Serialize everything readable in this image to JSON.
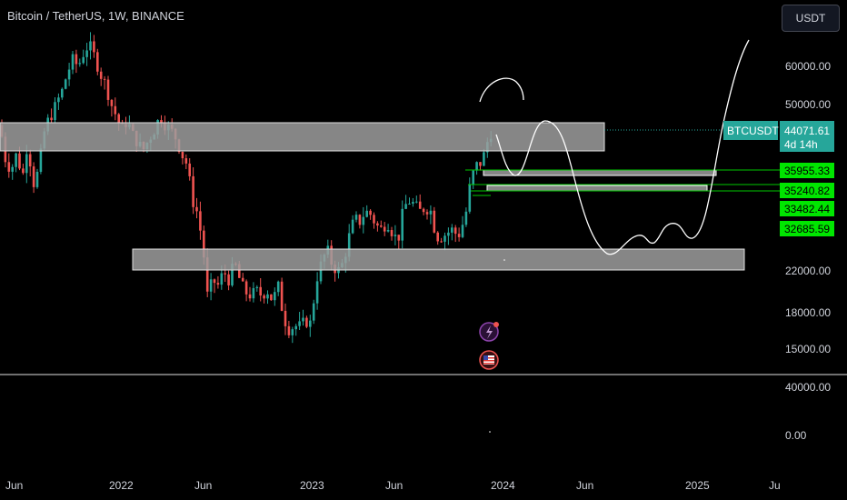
{
  "header": {
    "symbol_title": "Bitcoin / TetherUS, 1W, BINANCE",
    "currency_button": "USDT"
  },
  "colors": {
    "up": "#26a69a",
    "down": "#ef5350",
    "price_tag": "#26a69a",
    "level_tag": "#00e600",
    "zone_fill": "#9e9e9e"
  },
  "chart_data": {
    "type": "candlestick",
    "symbol": "BTCUSDT",
    "interval": "1W",
    "x_labels": [
      "Jun",
      "2022",
      "Jun",
      "2023",
      "Jun",
      "2024",
      "Jun",
      "2025",
      "Ju"
    ],
    "y_ticks_main": [
      "60000.00",
      "50000.00",
      "22000.00",
      "18000.00",
      "15000.00"
    ],
    "y_ticks_indicator": [
      "40000.00",
      "0.00"
    ],
    "last_price": {
      "symbol": "BTCUSDT",
      "price": "44071.61",
      "countdown": "4d 14h"
    },
    "level_labels": [
      "35955.33",
      "35240.82",
      "33482.44",
      "32685.59"
    ],
    "support_resistance_zones": [
      {
        "from": 42000,
        "to": 48000
      },
      {
        "from": 21500,
        "to": 24500
      }
    ],
    "candle_path": [
      [
        0,
        45000
      ],
      [
        6,
        38000
      ],
      [
        12,
        36000
      ],
      [
        18,
        39000
      ],
      [
        25,
        35000
      ],
      [
        30,
        41000
      ],
      [
        38,
        33000
      ],
      [
        44,
        38000
      ],
      [
        50,
        45000
      ],
      [
        56,
        47000
      ],
      [
        62,
        50000
      ],
      [
        68,
        53000
      ],
      [
        74,
        58000
      ],
      [
        80,
        62000
      ],
      [
        86,
        60000
      ],
      [
        92,
        64000
      ],
      [
        98,
        67000
      ],
      [
        104,
        63000
      ],
      [
        110,
        58000
      ],
      [
        116,
        55000
      ],
      [
        122,
        50000
      ],
      [
        128,
        47000
      ],
      [
        134,
        44000
      ],
      [
        140,
        46000
      ],
      [
        146,
        43000
      ],
      [
        152,
        41000
      ],
      [
        158,
        40000
      ],
      [
        164,
        42000
      ],
      [
        170,
        44000
      ],
      [
        176,
        47000
      ],
      [
        182,
        45000
      ],
      [
        188,
        44000
      ],
      [
        194,
        42000
      ],
      [
        200,
        39000
      ],
      [
        206,
        37000
      ],
      [
        212,
        31000
      ],
      [
        218,
        29000
      ],
      [
        224,
        24000
      ],
      [
        228,
        19500
      ],
      [
        234,
        21000
      ],
      [
        240,
        20500
      ],
      [
        246,
        22000
      ],
      [
        252,
        21000
      ],
      [
        258,
        23000
      ],
      [
        264,
        21000
      ],
      [
        270,
        19800
      ],
      [
        276,
        19500
      ],
      [
        282,
        20000
      ],
      [
        288,
        19500
      ],
      [
        294,
        20000
      ],
      [
        300,
        19000
      ],
      [
        306,
        20500
      ],
      [
        312,
        17500
      ],
      [
        318,
        16500
      ],
      [
        324,
        16800
      ],
      [
        330,
        16800
      ],
      [
        336,
        17200
      ],
      [
        342,
        17000
      ],
      [
        348,
        21000
      ],
      [
        354,
        23000
      ],
      [
        360,
        24500
      ],
      [
        366,
        22500
      ],
      [
        372,
        22000
      ],
      [
        378,
        23000
      ],
      [
        384,
        26000
      ],
      [
        390,
        28500
      ],
      [
        396,
        28000
      ],
      [
        402,
        29500
      ],
      [
        408,
        29000
      ],
      [
        414,
        27500
      ],
      [
        420,
        27000
      ],
      [
        426,
        28000
      ],
      [
        432,
        26500
      ],
      [
        438,
        25500
      ],
      [
        444,
        30000
      ],
      [
        450,
        31000
      ],
      [
        456,
        30500
      ],
      [
        462,
        29500
      ],
      [
        468,
        30000
      ],
      [
        474,
        29500
      ],
      [
        480,
        26000
      ],
      [
        486,
        26000
      ],
      [
        492,
        26500
      ],
      [
        498,
        27000
      ],
      [
        504,
        26000
      ],
      [
        510,
        28000
      ],
      [
        514,
        30000
      ],
      [
        518,
        34500
      ],
      [
        522,
        36000
      ],
      [
        526,
        37500
      ],
      [
        530,
        37200
      ],
      [
        534,
        40000
      ],
      [
        538,
        42500
      ],
      [
        542,
        44000
      ]
    ]
  }
}
